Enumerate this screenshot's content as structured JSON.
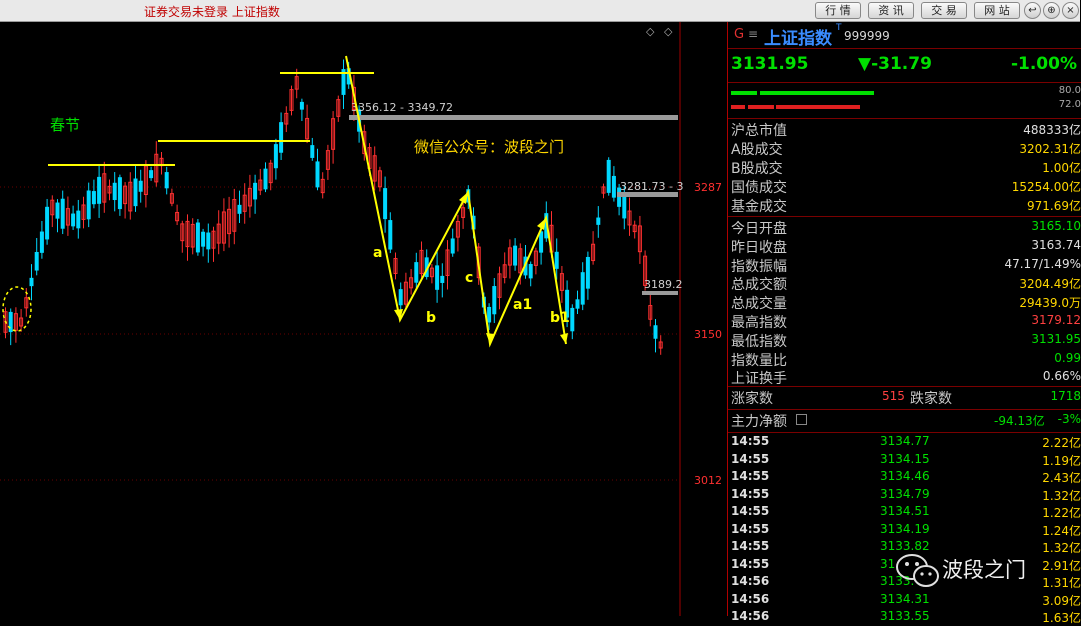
{
  "topbar": {
    "status": "证券交易未登录  上证指数",
    "buttons": [
      "行 情",
      "资 讯",
      "交 易",
      "网 站"
    ],
    "window_controls": [
      "↩",
      "⊕",
      "×"
    ]
  },
  "chart": {
    "price_levels": [
      "3287",
      "3150",
      "3012"
    ],
    "annotations": {
      "spring": "春节",
      "watermark_text": "微信公众号：波段之门",
      "range1": "3356.12 - 3349.72",
      "range2": "3281.73 - 3",
      "range3": "3189.2",
      "wave_a": "a",
      "wave_b": "b",
      "wave_c": "c",
      "wave_a1": "a1",
      "wave_b1": "b1"
    },
    "corner_icons": [
      "◇",
      "◇"
    ]
  },
  "panel": {
    "g_icon": "G",
    "menu_icon": "≡",
    "name": "上证指数",
    "name_mark": "T",
    "code": "999999",
    "price": "3131.95",
    "change": "▼-31.79",
    "change_pct": "-1.00%",
    "ratio_top": "80.0",
    "ratio_bottom": "72.0",
    "stats": [
      {
        "label": "沪总市值",
        "value": "488333亿",
        "color": "#e0e0e0"
      },
      {
        "label": "A股成交",
        "value": "3202.31亿",
        "color": "#ffd700"
      },
      {
        "label": "B股成交",
        "value": "1.00亿",
        "color": "#ffd700"
      },
      {
        "label": "国债成交",
        "value": "15254.00亿",
        "color": "#ffd700"
      },
      {
        "label": "基金成交",
        "value": "971.69亿",
        "color": "#ffd700"
      }
    ],
    "stats2": [
      {
        "label": "今日开盘",
        "value": "3165.10",
        "color": "#00e000"
      },
      {
        "label": "昨日收盘",
        "value": "3163.74",
        "color": "#e0e0e0"
      },
      {
        "label": "指数振幅",
        "value": "47.17/1.49%",
        "color": "#e0e0e0"
      },
      {
        "label": "总成交额",
        "value": "3204.49亿",
        "color": "#ffd700"
      },
      {
        "label": "总成交量",
        "value": "29439.0万",
        "color": "#ffd700"
      },
      {
        "label": "最高指数",
        "value": "3179.12",
        "color": "#ff4040"
      },
      {
        "label": "最低指数",
        "value": "3131.95",
        "color": "#00e000"
      },
      {
        "label": "指数量比",
        "value": "0.99",
        "color": "#00e000"
      },
      {
        "label": "上证换手",
        "value": "0.66%",
        "color": "#e0e0e0"
      }
    ],
    "up_label": "涨家数",
    "up_value": "515",
    "down_label": "跌家数",
    "down_value": "1718",
    "flow_label": "主力净额",
    "flow_value": "-94.13亿",
    "flow_pct": "-3%",
    "ticks": [
      {
        "time": "14:55",
        "price": "3134.77",
        "vol": "2.22亿"
      },
      {
        "time": "14:55",
        "price": "3134.15",
        "vol": "1.19亿"
      },
      {
        "time": "14:55",
        "price": "3134.46",
        "vol": "2.43亿"
      },
      {
        "time": "14:55",
        "price": "3134.79",
        "vol": "1.32亿"
      },
      {
        "time": "14:55",
        "price": "3134.51",
        "vol": "1.22亿"
      },
      {
        "time": "14:55",
        "price": "3134.19",
        "vol": "1.24亿"
      },
      {
        "time": "14:55",
        "price": "3133.82",
        "vol": "1.32亿"
      },
      {
        "time": "14:55",
        "price": "31",
        "vol": "2.91亿"
      },
      {
        "time": "14:56",
        "price": "3133.",
        "vol": "1.31亿"
      },
      {
        "time": "14:56",
        "price": "3134.31",
        "vol": "3.09亿"
      },
      {
        "time": "14:56",
        "price": "3133.55",
        "vol": "1.63亿"
      }
    ],
    "watermark": "波段之门"
  },
  "colors": {
    "up_candle": "#ff3030",
    "down_candle": "#00d8ff",
    "annotation": "#ffff00",
    "price_green": "#00e000",
    "volume_yellow": "#ffd700"
  }
}
